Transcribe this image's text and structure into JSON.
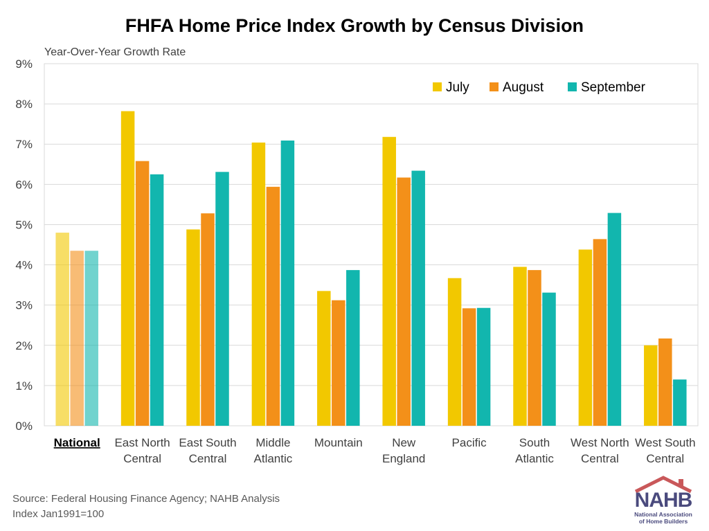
{
  "chart_data": {
    "type": "bar",
    "title": "FHFA Home Price Index Growth by Census Division",
    "ylabel": "Year-Over-Year Growth Rate",
    "xlabel": "",
    "ylim": [
      0,
      9
    ],
    "yticks": [
      "0%",
      "1%",
      "2%",
      "3%",
      "4%",
      "5%",
      "6%",
      "7%",
      "8%",
      "9%"
    ],
    "grid": true,
    "legend_position": "top-right",
    "categories": [
      [
        "National"
      ],
      [
        "East North",
        "Central"
      ],
      [
        "East South",
        "Central"
      ],
      [
        "Middle",
        "Atlantic"
      ],
      [
        "Mountain"
      ],
      [
        "New",
        "England"
      ],
      [
        "Pacific"
      ],
      [
        "South",
        "Atlantic"
      ],
      [
        "West North",
        "Central"
      ],
      [
        "West South",
        "Central"
      ]
    ],
    "highlighted_category": "National",
    "series": [
      {
        "name": "July",
        "color": "#F2C800",
        "values": [
          4.8,
          7.82,
          4.88,
          7.04,
          3.35,
          7.18,
          3.67,
          3.95,
          4.38,
          2.0
        ]
      },
      {
        "name": "August",
        "color": "#F39019",
        "values": [
          4.35,
          6.58,
          5.28,
          5.94,
          3.12,
          6.17,
          2.92,
          3.87,
          4.64,
          2.17
        ]
      },
      {
        "name": "September",
        "color": "#12B6AE",
        "values": [
          4.35,
          6.25,
          6.31,
          7.09,
          3.87,
          6.34,
          2.93,
          3.31,
          5.29,
          1.15
        ]
      }
    ]
  },
  "source_lines": [
    "Source: Federal Housing Finance Agency; NAHB Analysis",
    "Index Jan1991=100"
  ],
  "logo": {
    "text": "NAHB",
    "sub_lines": [
      "National Association",
      "of Home Builders"
    ]
  }
}
